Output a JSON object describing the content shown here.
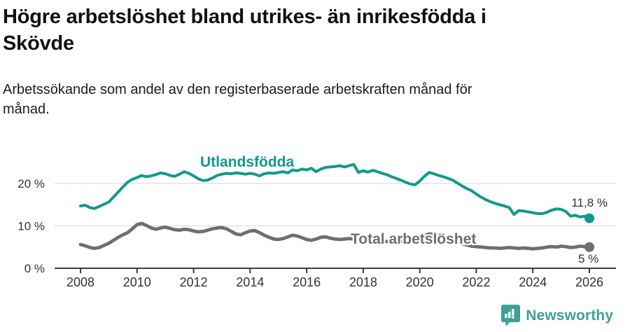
{
  "header": {
    "title_lines": [
      "Högre arbetslöshet bland utrikes- än inrikesfödda i",
      "Skövde"
    ],
    "subtitle_lines": [
      "Arbetssökande som andel av den registerbaserade arbetskraften månad för",
      "månad."
    ]
  },
  "chart_data": {
    "type": "line",
    "title": "Högre arbetslöshet bland utrikes- än inrikesfödda i Skövde",
    "subtitle": "Arbetssökande som andel av den registerbaserade arbetskraften månad för månad.",
    "unit": "%",
    "grid": "horizontal",
    "legend_position": "inline-labels",
    "x_start": 2008,
    "x_step": 0.1666667,
    "xlim": [
      2008,
      2026.3
    ],
    "ylim": [
      0,
      26
    ],
    "x_ticks": [
      {
        "value": 2008,
        "label": "2008"
      },
      {
        "value": 2010,
        "label": "2010"
      },
      {
        "value": 2012,
        "label": "2012"
      },
      {
        "value": 2014,
        "label": "2014"
      },
      {
        "value": 2016,
        "label": "2016"
      },
      {
        "value": 2018,
        "label": "2018"
      },
      {
        "value": 2020,
        "label": "2020"
      },
      {
        "value": 2022,
        "label": "2022"
      },
      {
        "value": 2024,
        "label": "2024"
      },
      {
        "value": 2026,
        "label": "2026"
      }
    ],
    "y_ticks": [
      {
        "value": 0,
        "label": "0 %"
      },
      {
        "value": 10,
        "label": "10 %"
      },
      {
        "value": 20,
        "label": "20 %"
      }
    ],
    "series": [
      {
        "name": "Utlandsfödda",
        "color": "#109A8C",
        "end_label": "11,8 %",
        "end_value": 11.8,
        "values": [
          14.7,
          14.9,
          14.3,
          14.1,
          14.6,
          15.1,
          15.6,
          16.8,
          18.0,
          19.2,
          20.3,
          21.0,
          21.4,
          21.9,
          21.6,
          21.8,
          22.1,
          22.5,
          22.3,
          21.9,
          21.7,
          22.2,
          22.8,
          22.4,
          21.8,
          21.1,
          20.7,
          20.8,
          21.3,
          21.9,
          22.2,
          22.4,
          22.3,
          22.5,
          22.4,
          22.2,
          22.4,
          22.2,
          21.8,
          22.3,
          22.5,
          22.4,
          22.6,
          22.8,
          22.5,
          23.2,
          23.0,
          23.4,
          23.2,
          23.6,
          22.8,
          23.4,
          23.8,
          23.9,
          24.0,
          24.2,
          23.9,
          24.2,
          24.5,
          22.6,
          23.0,
          22.7,
          23.1,
          22.8,
          22.4,
          22.1,
          21.6,
          21.2,
          20.8,
          20.3,
          19.9,
          19.7,
          20.6,
          21.7,
          22.6,
          22.3,
          21.9,
          21.6,
          21.2,
          20.8,
          20.1,
          19.4,
          18.8,
          18.3,
          17.5,
          16.8,
          16.2,
          15.7,
          15.3,
          15.0,
          14.7,
          14.3,
          12.7,
          13.6,
          13.5,
          13.3,
          13.1,
          12.9,
          12.9,
          13.2,
          13.7,
          14.0,
          13.9,
          13.4,
          12.3,
          12.5,
          12.1,
          12.3,
          11.8
        ]
      },
      {
        "name": "Total arbetslöshet",
        "color": "#6F6F6F",
        "end_label": "5 %",
        "end_value": 5,
        "values": [
          5.6,
          5.3,
          4.9,
          4.7,
          4.9,
          5.4,
          5.9,
          6.6,
          7.3,
          7.9,
          8.4,
          9.3,
          10.3,
          10.6,
          10.1,
          9.5,
          9.2,
          9.5,
          9.7,
          9.4,
          9.1,
          9.0,
          9.2,
          9.1,
          8.8,
          8.6,
          8.7,
          9.0,
          9.3,
          9.5,
          9.6,
          9.3,
          8.7,
          8.1,
          7.9,
          8.4,
          8.8,
          8.9,
          8.4,
          7.8,
          7.3,
          6.9,
          6.8,
          7.0,
          7.4,
          7.8,
          7.6,
          7.2,
          6.8,
          6.6,
          6.9,
          7.3,
          7.4,
          7.1,
          6.9,
          6.8,
          6.9,
          7.0,
          6.9,
          6.8,
          6.7,
          6.6,
          6.5,
          6.5,
          6.4,
          6.3,
          6.3,
          6.2,
          6.3,
          6.5,
          6.6,
          6.8,
          7.1,
          7.7,
          8.1,
          8.0,
          7.7,
          7.4,
          7.0,
          6.6,
          6.2,
          5.8,
          5.5,
          5.2,
          5.1,
          5.0,
          4.9,
          4.8,
          4.8,
          4.7,
          4.8,
          4.9,
          4.8,
          4.7,
          4.8,
          4.7,
          4.6,
          4.7,
          4.8,
          5.0,
          5.1,
          5.0,
          5.2,
          5.1,
          4.9,
          5.0,
          5.2,
          5.1,
          5.0
        ]
      }
    ]
  },
  "style": {
    "axis_color": "#3c3c3c",
    "grid_color": "#dcdcdc",
    "tick_label_color": "#333333"
  },
  "footer": {
    "brand": "Newsworthy",
    "brand_color": "#3FA096"
  }
}
